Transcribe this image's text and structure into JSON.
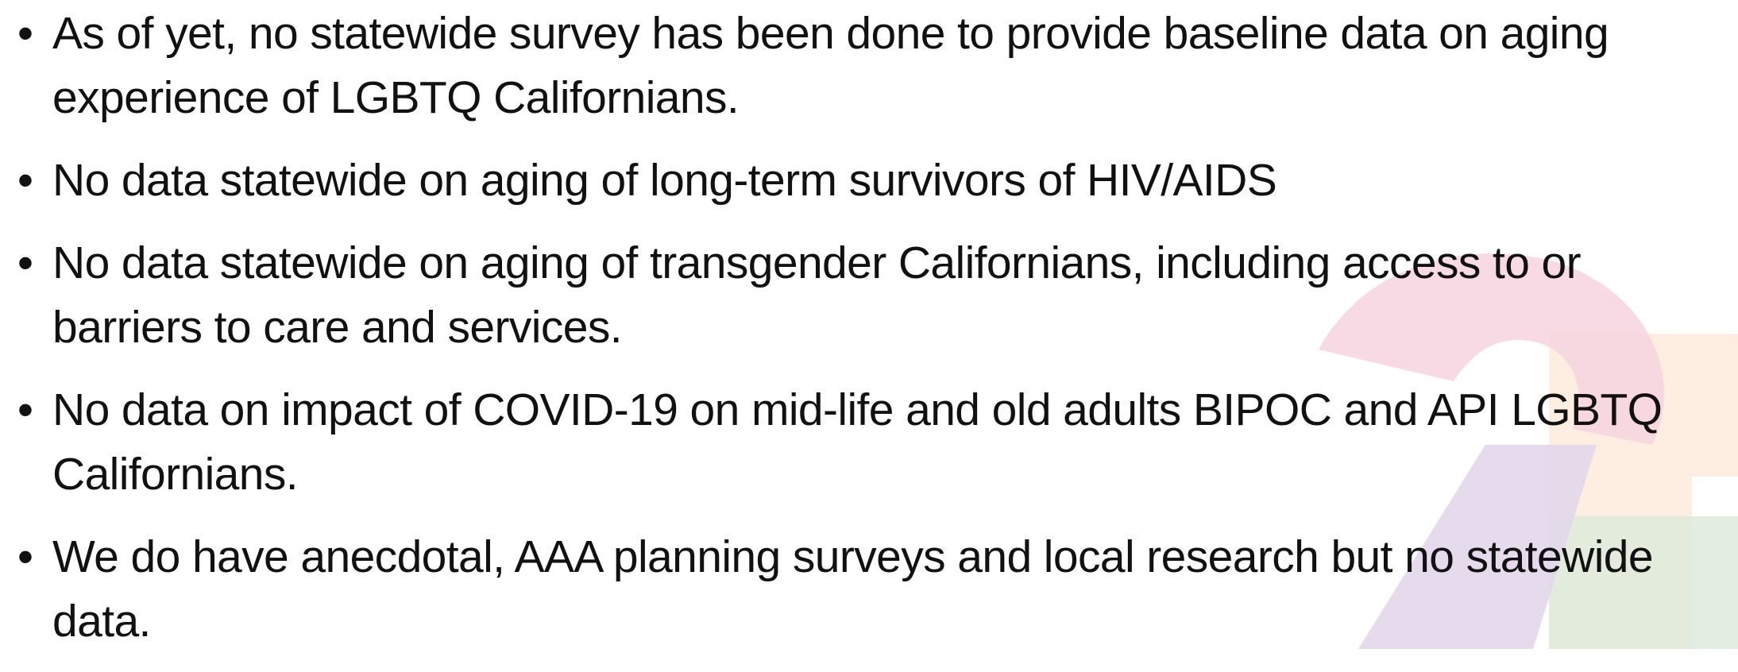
{
  "bullets": [
    "As of yet, no statewide survey has been done to provide baseline data on aging experience of LGBTQ Californians.",
    "No data statewide on aging of long-term survivors of HIV/AIDS",
    "No data statewide on aging of transgender Californians, including access to or barriers to care and services.",
    "No data on impact of COVID-19 on mid-life and old adults BIPOC and API LGBTQ Californians.",
    "We do have anecdotal, AAA planning surveys and local research but no statewide data."
  ]
}
